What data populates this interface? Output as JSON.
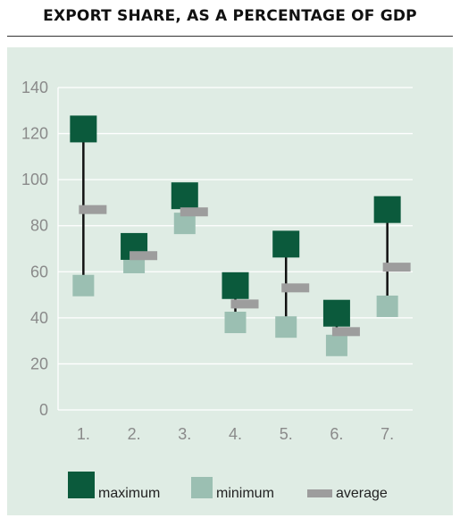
{
  "title": "EXPORT SHARE, AS A PERCENTAGE OF GDP",
  "colors": {
    "maximum": "#0b5a3c",
    "minimum": "#9bbfb2",
    "average": "#9d9d9d",
    "line": "#111111",
    "grid": "#ffffff",
    "background": "#dfece4"
  },
  "chart_data": {
    "type": "range-dot",
    "categories": [
      "1.",
      "2.",
      "3.",
      "4.",
      "5.",
      "6.",
      "7."
    ],
    "series": [
      {
        "name": "maximum",
        "values": [
          122,
          71,
          93,
          54,
          72,
          42,
          87
        ]
      },
      {
        "name": "minimum",
        "values": [
          54,
          64,
          81,
          38,
          36,
          28,
          45
        ]
      },
      {
        "name": "average",
        "values": [
          87,
          67,
          86,
          46,
          53,
          34,
          62
        ]
      }
    ],
    "yticks": [
      "0",
      "20",
      "40",
      "60",
      "80",
      "100",
      "120",
      "140"
    ],
    "ylim": [
      0,
      140
    ],
    "grid": true,
    "legend_position": "bottom"
  }
}
